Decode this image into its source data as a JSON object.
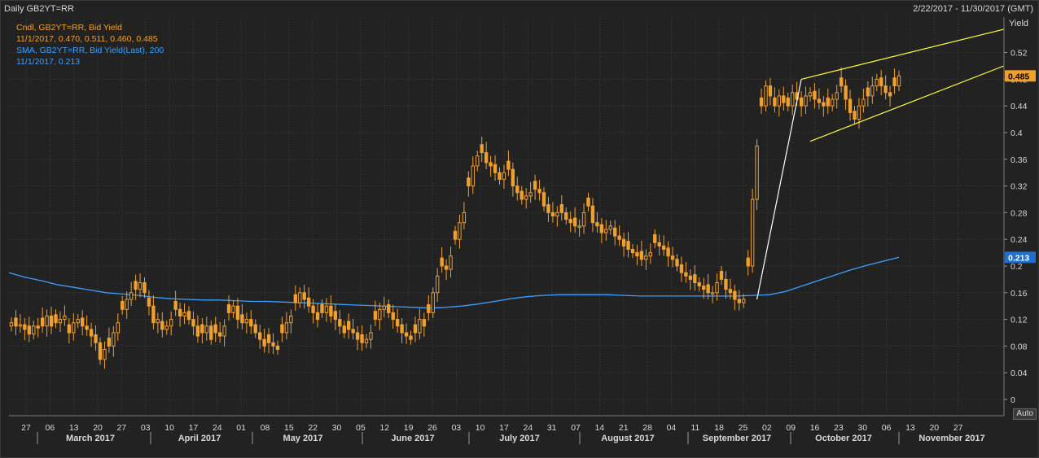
{
  "header": {
    "title": "Daily GB2YT=RR",
    "date_range": "2/22/2017 - 11/30/2017 (GMT)"
  },
  "legend": {
    "candle_label": "Cndl, GB2YT=RR, Bid Yield",
    "candle_values": "11/1/2017, 0.470, 0.511, 0.460, 0.485",
    "sma_label": "SMA, GB2YT=RR, Bid Yield(Last),  200",
    "sma_values": "11/1/2017, 0.213"
  },
  "axis_button": "Auto",
  "colors": {
    "background": "#222222",
    "candle": "#f0a02c",
    "sma": "#3aa0ff",
    "trendline": "#ffff33",
    "grid": "#3c3c3c",
    "text": "#d8d8d8"
  },
  "chart_data": {
    "type": "candlestick",
    "ylabel": "Yield",
    "ylim": [
      0,
      0.58
    ],
    "y_ticks": [
      "0",
      "0.04",
      "0.08",
      "0.12",
      "0.16",
      "0.2",
      "0.24",
      "0.28",
      "0.32",
      "0.36",
      "0.4",
      "0.44",
      "0.48",
      "0.52"
    ],
    "x_day_ticks": [
      "27",
      "06",
      "13",
      "20",
      "27",
      "03",
      "10",
      "17",
      "24",
      "01",
      "08",
      "15",
      "22",
      "30",
      "05",
      "12",
      "19",
      "26",
      "03",
      "10",
      "17",
      "24",
      "31",
      "07",
      "14",
      "21",
      "28",
      "04",
      "11",
      "18",
      "25",
      "02",
      "09",
      "16",
      "23",
      "30",
      "06",
      "13",
      "20",
      "27"
    ],
    "x_months": [
      "March 2017",
      "April 2017",
      "May 2017",
      "June 2017",
      "July 2017",
      "August 2017",
      "September 2017",
      "October 2017",
      "November 2017"
    ],
    "last_close": "0.485",
    "sma_last": "0.213",
    "grid": true,
    "closes": [
      0.115,
      0.11,
      0.112,
      0.105,
      0.098,
      0.11,
      0.107,
      0.11,
      0.125,
      0.11,
      0.115,
      0.12,
      0.125,
      0.1,
      0.115,
      0.12,
      0.11,
      0.105,
      0.095,
      0.085,
      0.06,
      0.075,
      0.08,
      0.1,
      0.115,
      0.135,
      0.15,
      0.16,
      0.165,
      0.175,
      0.16,
      0.14,
      0.115,
      0.12,
      0.105,
      0.11,
      0.12,
      0.135,
      0.125,
      0.13,
      0.12,
      0.11,
      0.095,
      0.1,
      0.11,
      0.09,
      0.1,
      0.095,
      0.11,
      0.13,
      0.14,
      0.12,
      0.115,
      0.12,
      0.11,
      0.1,
      0.09,
      0.08,
      0.085,
      0.08,
      0.075,
      0.1,
      0.115,
      0.125,
      0.145,
      0.16,
      0.15,
      0.14,
      0.13,
      0.12,
      0.13,
      0.14,
      0.125,
      0.12,
      0.11,
      0.1,
      0.105,
      0.1,
      0.09,
      0.085,
      0.09,
      0.1,
      0.12,
      0.135,
      0.14,
      0.13,
      0.12,
      0.11,
      0.1,
      0.095,
      0.09,
      0.1,
      0.12,
      0.11,
      0.13,
      0.16,
      0.185,
      0.2,
      0.195,
      0.215,
      0.24,
      0.265,
      0.28,
      0.32,
      0.35,
      0.365,
      0.37,
      0.355,
      0.35,
      0.34,
      0.33,
      0.34,
      0.345,
      0.32,
      0.31,
      0.3,
      0.305,
      0.31,
      0.315,
      0.31,
      0.29,
      0.28,
      0.275,
      0.28,
      0.28,
      0.27,
      0.265,
      0.26,
      0.26,
      0.28,
      0.29,
      0.265,
      0.26,
      0.25,
      0.255,
      0.26,
      0.245,
      0.24,
      0.23,
      0.225,
      0.22,
      0.215,
      0.21,
      0.215,
      0.22,
      0.235,
      0.23,
      0.225,
      0.215,
      0.21,
      0.2,
      0.19,
      0.185,
      0.18,
      0.175,
      0.17,
      0.165,
      0.16,
      0.16,
      0.175,
      0.18,
      0.165,
      0.16,
      0.15,
      0.145,
      0.15,
      0.2,
      0.3,
      0.38,
      0.44,
      0.47,
      0.455,
      0.44,
      0.455,
      0.445,
      0.44,
      0.46,
      0.45,
      0.44,
      0.455,
      0.46,
      0.45,
      0.445,
      0.44,
      0.44,
      0.45,
      0.46,
      0.47,
      0.45,
      0.43,
      0.42,
      0.44,
      0.45,
      0.455,
      0.47,
      0.48,
      0.47,
      0.46,
      0.455,
      0.47,
      0.485
    ],
    "sma": [
      0.19,
      0.183,
      0.178,
      0.172,
      0.168,
      0.164,
      0.16,
      0.158,
      0.156,
      0.153,
      0.151,
      0.15,
      0.149,
      0.149,
      0.148,
      0.147,
      0.147,
      0.146,
      0.145,
      0.144,
      0.143,
      0.142,
      0.141,
      0.14,
      0.139,
      0.138,
      0.137,
      0.138,
      0.14,
      0.143,
      0.147,
      0.151,
      0.154,
      0.156,
      0.157,
      0.157,
      0.157,
      0.157,
      0.156,
      0.155,
      0.155,
      0.155,
      0.155,
      0.155,
      0.155,
      0.155,
      0.156,
      0.157,
      0.162,
      0.17,
      0.178,
      0.186,
      0.194,
      0.201,
      0.207,
      0.213
    ]
  }
}
